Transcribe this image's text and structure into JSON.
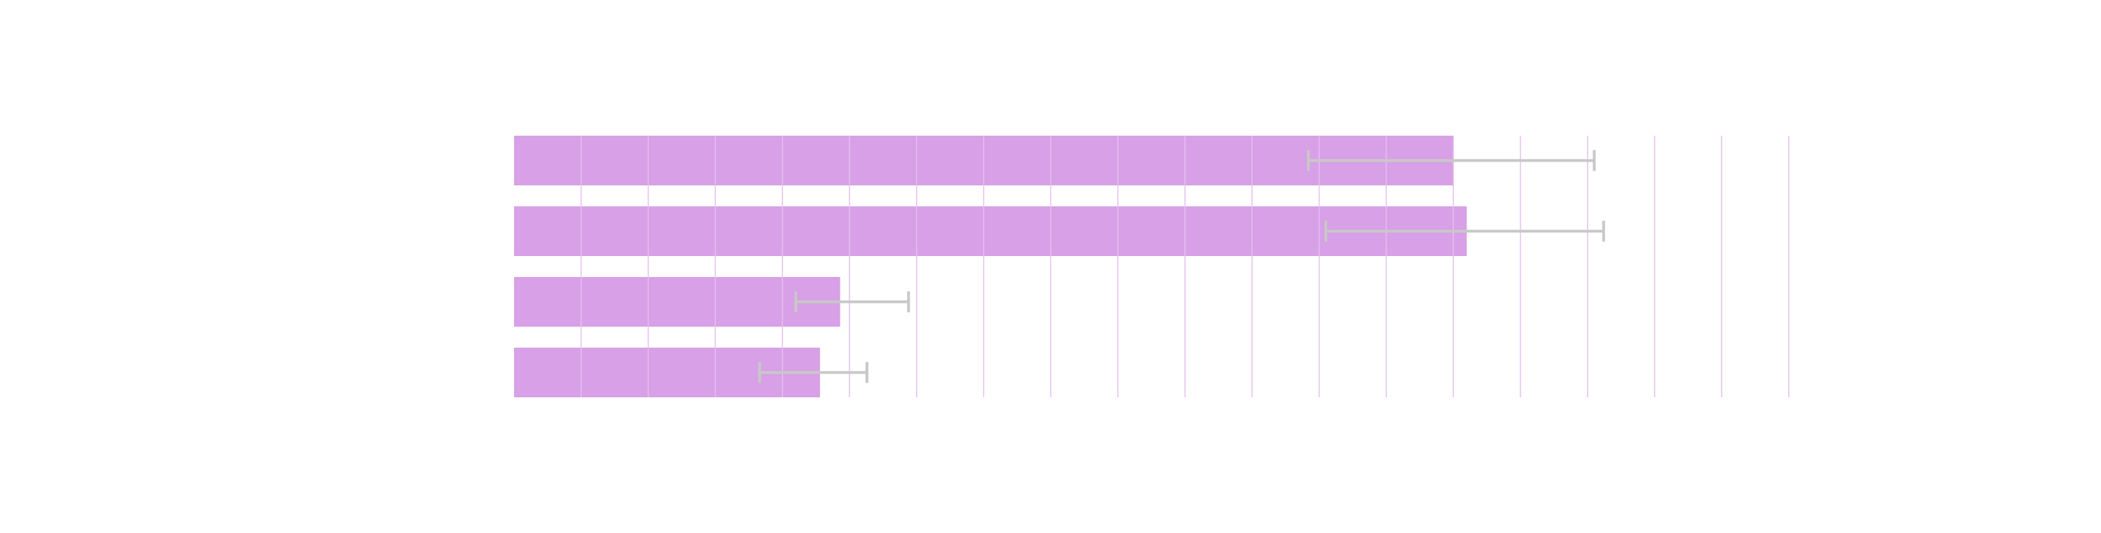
{
  "chart_data": {
    "type": "bar",
    "orientation": "horizontal",
    "title": "",
    "xlabel": "",
    "ylabel": "",
    "categories": [
      "",
      "",
      "",
      ""
    ],
    "values": [
      70,
      71,
      24.3,
      22.8
    ],
    "error_low": [
      59.2,
      60.5,
      21,
      18.3
    ],
    "error_high": [
      80.5,
      81.2,
      29.4,
      26.3
    ],
    "xlim": [
      0,
      100
    ],
    "grid": true,
    "legend": "none",
    "colors": {
      "bar": "#d8a0e6",
      "error_bar": "#c8c8c8",
      "grid": "#e6bff0"
    }
  }
}
